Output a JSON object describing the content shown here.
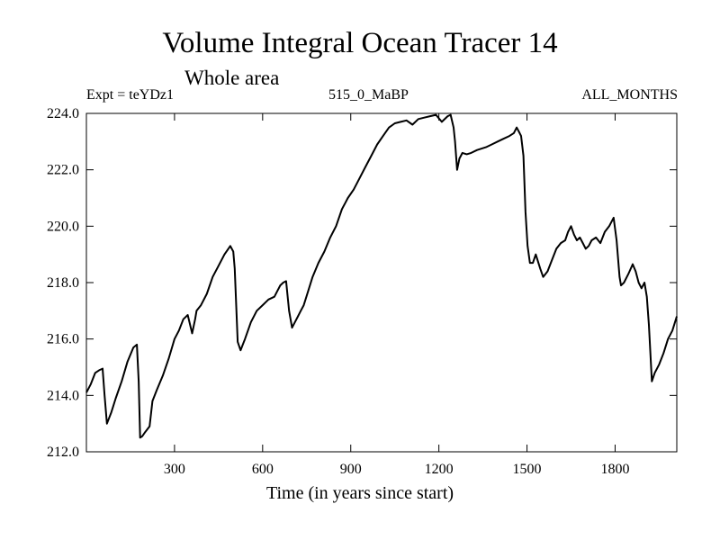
{
  "chart_data": {
    "type": "line",
    "title": "Volume Integral Ocean Tracer 14",
    "subtitle": "Whole area",
    "annotations": {
      "left": "Expt = teYDz1",
      "center": "515_0_MaBP",
      "right": "ALL_MONTHS"
    },
    "xlabel": "Time (in years since start)",
    "ylabel": "",
    "xlim": [
      0,
      2010
    ],
    "ylim": [
      212.0,
      224.0
    ],
    "xticks": [
      300,
      600,
      900,
      1200,
      1500,
      1800
    ],
    "xtick_labels": [
      "300",
      "600",
      "900",
      "1200",
      "1500",
      "1800"
    ],
    "yticks": [
      212.0,
      214.0,
      216.0,
      218.0,
      220.0,
      222.0,
      224.0
    ],
    "ytick_labels": [
      "212.0",
      "214.0",
      "216.0",
      "218.0",
      "220.0",
      "222.0",
      "224.0"
    ],
    "grid": false,
    "series": [
      {
        "color": "#000000",
        "x": [
          0,
          15,
          30,
          45,
          55,
          62,
          70,
          85,
          100,
          120,
          140,
          160,
          172,
          178,
          183,
          190,
          200,
          215,
          225,
          240,
          260,
          280,
          300,
          315,
          330,
          345,
          360,
          370,
          375,
          390,
          410,
          430,
          450,
          470,
          490,
          500,
          505,
          515,
          525,
          540,
          560,
          580,
          600,
          620,
          640,
          650,
          660,
          670,
          680,
          690,
          700,
          710,
          720,
          730,
          740,
          755,
          770,
          790,
          810,
          830,
          850,
          870,
          880,
          890,
          910,
          930,
          950,
          970,
          990,
          1010,
          1030,
          1050,
          1070,
          1090,
          1110,
          1130,
          1150,
          1170,
          1190,
          1210,
          1230,
          1240,
          1250,
          1255,
          1262,
          1270,
          1280,
          1295,
          1310,
          1330,
          1360,
          1380,
          1400,
          1420,
          1440,
          1455,
          1465,
          1475,
          1480,
          1488,
          1495,
          1502,
          1510,
          1520,
          1530,
          1545,
          1555,
          1570,
          1585,
          1600,
          1615,
          1630,
          1640,
          1650,
          1660,
          1670,
          1680,
          1690,
          1700,
          1710,
          1720,
          1735,
          1750,
          1765,
          1780,
          1795,
          1805,
          1815,
          1820,
          1830,
          1845,
          1860,
          1870,
          1880,
          1890,
          1900,
          1908,
          1915,
          1925,
          1935,
          1950,
          1965,
          1980,
          1995,
          2010
        ],
        "values": [
          214.1,
          214.4,
          214.8,
          214.9,
          214.95,
          214.0,
          213.0,
          213.4,
          213.9,
          214.5,
          215.2,
          215.7,
          215.8,
          214.5,
          212.5,
          212.55,
          212.7,
          212.9,
          213.8,
          214.2,
          214.7,
          215.3,
          216.0,
          216.3,
          216.7,
          216.85,
          216.2,
          216.7,
          217.0,
          217.2,
          217.6,
          218.2,
          218.6,
          219.0,
          219.3,
          219.1,
          218.5,
          215.9,
          215.6,
          216.0,
          216.6,
          217.0,
          217.2,
          217.4,
          217.5,
          217.7,
          217.9,
          218.0,
          218.05,
          217.0,
          216.4,
          216.6,
          216.8,
          217.0,
          217.2,
          217.7,
          218.2,
          218.7,
          219.1,
          219.6,
          220.0,
          220.6,
          220.8,
          221.0,
          221.3,
          221.7,
          222.1,
          222.5,
          222.9,
          223.2,
          223.5,
          223.65,
          223.7,
          223.75,
          223.6,
          223.8,
          223.85,
          223.9,
          223.95,
          223.7,
          223.9,
          223.95,
          223.5,
          223.0,
          222.0,
          222.4,
          222.6,
          222.55,
          222.6,
          222.7,
          222.8,
          222.9,
          223.0,
          223.1,
          223.2,
          223.3,
          223.5,
          223.3,
          223.2,
          222.5,
          220.5,
          219.3,
          218.7,
          218.7,
          219.0,
          218.5,
          218.2,
          218.4,
          218.8,
          219.2,
          219.4,
          219.5,
          219.8,
          220.0,
          219.7,
          219.5,
          219.6,
          219.4,
          219.2,
          219.3,
          219.5,
          219.6,
          219.4,
          219.8,
          220.0,
          220.3,
          219.5,
          218.2,
          217.9,
          218.0,
          218.3,
          218.65,
          218.4,
          218.0,
          217.8,
          218.0,
          217.5,
          216.5,
          214.5,
          214.8,
          215.1,
          215.5,
          216.0,
          216.3,
          216.8
        ]
      }
    ]
  }
}
